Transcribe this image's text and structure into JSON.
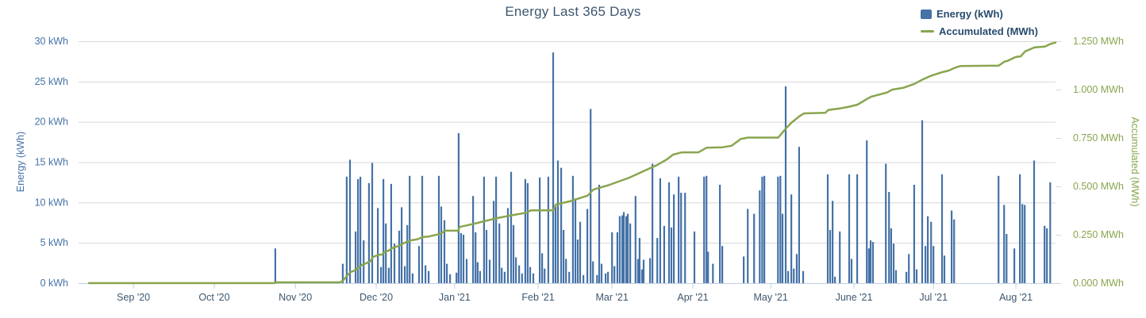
{
  "chart_data": {
    "type": "combo",
    "title": "Energy Last 365 Days",
    "title_color": "#3E576F",
    "background_color": "#ffffff",
    "grid_color": "#D8D8D8",
    "axis_line_color": "#C0D0E0",
    "legend": {
      "items": [
        {
          "label": "Energy (kWh)",
          "symbol": "bar",
          "color": "#4572A7"
        },
        {
          "label": "Accumulated (MWh)",
          "symbol": "line",
          "color": "#89A54E"
        }
      ],
      "text_color": "#274B6D",
      "position": "top-right"
    },
    "x_axis": {
      "unit": "days_from_start",
      "range_days": 365,
      "label_color": "#3E576F",
      "ticks": [
        {
          "label": "Sep '20",
          "d": 20.5
        },
        {
          "label": "Oct '20",
          "d": 50.7
        },
        {
          "label": "Nov '20",
          "d": 81.0
        },
        {
          "label": "Dec '20",
          "d": 111.2
        },
        {
          "label": "Jan '21",
          "d": 140.5
        },
        {
          "label": "Feb '21",
          "d": 171.7
        },
        {
          "label": "Mar '21",
          "d": 199.3
        },
        {
          "label": "Apr '21",
          "d": 229.5
        },
        {
          "label": "May '21",
          "d": 258.6
        },
        {
          "label": "June '21",
          "d": 289.7
        },
        {
          "label": "Jul '21",
          "d": 319.4
        },
        {
          "label": "Aug '21",
          "d": 350.2
        }
      ]
    },
    "y_axis_left": {
      "title": "Energy (kWh)",
      "color": "#4572A7",
      "min": 0,
      "max": 30,
      "tick_step": 5,
      "ticks": [
        {
          "v": 0,
          "label": "0 kWh"
        },
        {
          "v": 5,
          "label": "5 kWh"
        },
        {
          "v": 10,
          "label": "10 kWh"
        },
        {
          "v": 15,
          "label": "15 kWh"
        },
        {
          "v": 20,
          "label": "20 kWh"
        },
        {
          "v": 25,
          "label": "25 kWh"
        },
        {
          "v": 30,
          "label": "30 kWh"
        }
      ]
    },
    "y_axis_right": {
      "title": "Accumulated (MWh)",
      "color": "#89A54E",
      "min": 0,
      "max": 1.25,
      "tick_step": 0.25,
      "ticks": [
        {
          "v": 0,
          "label": "0.000 MWh"
        },
        {
          "v": 0.25,
          "label": "0.250 MWh"
        },
        {
          "v": 0.5,
          "label": "0.500 MWh"
        },
        {
          "v": 0.75,
          "label": "0.750 MWh"
        },
        {
          "v": 1.0,
          "label": "1.000 MWh"
        },
        {
          "v": 1.25,
          "label": "1.250 MWh"
        }
      ]
    },
    "series": [
      {
        "name": "Energy (kWh)",
        "type": "bar",
        "axis": "left",
        "unit": "kWh",
        "color": "#4572A7",
        "points": [
          [
            73.5,
            4.3
          ],
          [
            98.7,
            2.4
          ],
          [
            100.2,
            13.2
          ],
          [
            101.4,
            15.3
          ],
          [
            103.5,
            6.4
          ],
          [
            104.4,
            12.9
          ],
          [
            105.3,
            13.2
          ],
          [
            106.5,
            5.3
          ],
          [
            108.5,
            12.4
          ],
          [
            109.7,
            14.9
          ],
          [
            111.8,
            9.3
          ],
          [
            113,
            2
          ],
          [
            113.9,
            12.9
          ],
          [
            114.8,
            7.4
          ],
          [
            115.9,
            1.9
          ],
          [
            116.8,
            12.3
          ],
          [
            118,
            4.9
          ],
          [
            119.8,
            6.5
          ],
          [
            120.7,
            9.4
          ],
          [
            121.9,
            2.1
          ],
          [
            122.8,
            7.2
          ],
          [
            123.7,
            13.3
          ],
          [
            124.8,
            1.2
          ],
          [
            127.2,
            4.6
          ],
          [
            128.4,
            13.3
          ],
          [
            129.6,
            2.2
          ],
          [
            130.8,
            1.5
          ],
          [
            134.6,
            13.3
          ],
          [
            135.5,
            9.5
          ],
          [
            136.7,
            7.8
          ],
          [
            137.6,
            2.4
          ],
          [
            138.8,
            1.1
          ],
          [
            141.2,
            1.3
          ],
          [
            142,
            18.6
          ],
          [
            142.9,
            6.2
          ],
          [
            143.8,
            6
          ],
          [
            145,
            3
          ],
          [
            147.4,
            10.8
          ],
          [
            148.3,
            6.3
          ],
          [
            149.1,
            2.6
          ],
          [
            150,
            1.5
          ],
          [
            151.5,
            13.2
          ],
          [
            152.4,
            6.6
          ],
          [
            153.6,
            2.9
          ],
          [
            155.1,
            10.2
          ],
          [
            156,
            13.2
          ],
          [
            157.2,
            7.4
          ],
          [
            158.1,
            1.9
          ],
          [
            159.2,
            1.4
          ],
          [
            160.4,
            9.3
          ],
          [
            161.6,
            13.8
          ],
          [
            162.5,
            7.2
          ],
          [
            163.4,
            3.2
          ],
          [
            164.6,
            2.2
          ],
          [
            165.7,
            1.2
          ],
          [
            166.9,
            12.9
          ],
          [
            167.8,
            12.4
          ],
          [
            168.7,
            2
          ],
          [
            169.9,
            1.2
          ],
          [
            172.3,
            13.1
          ],
          [
            173.2,
            3.7
          ],
          [
            174.1,
            1.8
          ],
          [
            175.5,
            13.2
          ],
          [
            177.3,
            28.6
          ],
          [
            178.2,
            9.5
          ],
          [
            179.1,
            15.2
          ],
          [
            180.3,
            14.3
          ],
          [
            181.2,
            6.6
          ],
          [
            182.1,
            3
          ],
          [
            183.3,
            1.4
          ],
          [
            184.7,
            13.3
          ],
          [
            185.6,
            10.5
          ],
          [
            186.5,
            5.4
          ],
          [
            187.4,
            7.6
          ],
          [
            188.6,
            1
          ],
          [
            190.1,
            9.2
          ],
          [
            191.3,
            21.6
          ],
          [
            192.2,
            2.7
          ],
          [
            193.7,
            1
          ],
          [
            194.5,
            12.2
          ],
          [
            195.4,
            2.4
          ],
          [
            196.9,
            1.2
          ],
          [
            197.8,
            1.4
          ],
          [
            199.3,
            6.3
          ],
          [
            200.2,
            2.1
          ],
          [
            201.3,
            6.3
          ],
          [
            202.2,
            8.3
          ],
          [
            203.1,
            8.4
          ],
          [
            203.7,
            8.8
          ],
          [
            204.6,
            8.3
          ],
          [
            205.2,
            8.6
          ],
          [
            206.1,
            7.4
          ],
          [
            208.1,
            10.8
          ],
          [
            209,
            3
          ],
          [
            209.6,
            5.6
          ],
          [
            210.5,
            1.7
          ],
          [
            211.1,
            2.9
          ],
          [
            213.5,
            3.1
          ],
          [
            214.4,
            14.8
          ],
          [
            216.2,
            5.6
          ],
          [
            217.3,
            13
          ],
          [
            218.8,
            7.1
          ],
          [
            220.6,
            12.5
          ],
          [
            221.5,
            6.9
          ],
          [
            222.4,
            11
          ],
          [
            224.2,
            13.2
          ],
          [
            225.1,
            11.2
          ],
          [
            226.6,
            11.2
          ],
          [
            230.1,
            6.4
          ],
          [
            233.7,
            13.2
          ],
          [
            234.6,
            13.3
          ],
          [
            235.2,
            3.9
          ],
          [
            237,
            2.4
          ],
          [
            239.6,
            12.2
          ],
          [
            240.5,
            4.6
          ],
          [
            248.5,
            3.3
          ],
          [
            250,
            9.2
          ],
          [
            252.4,
            8.6
          ],
          [
            254.5,
            11.5
          ],
          [
            255.4,
            13.2
          ],
          [
            256.2,
            13.3
          ],
          [
            261.3,
            13.2
          ],
          [
            262.2,
            13.3
          ],
          [
            263,
            8.6
          ],
          [
            264.2,
            24.4
          ],
          [
            265.1,
            1.5
          ],
          [
            266.3,
            11
          ],
          [
            267.2,
            1.8
          ],
          [
            268.3,
            3.6
          ],
          [
            269.2,
            16.9
          ],
          [
            270.7,
            1.5
          ],
          [
            279.9,
            13.5
          ],
          [
            280.8,
            6.6
          ],
          [
            281.7,
            10.2
          ],
          [
            282.6,
            0.8
          ],
          [
            284.4,
            6.4
          ],
          [
            287.9,
            13.5
          ],
          [
            288.8,
            3
          ],
          [
            290.9,
            13.5
          ],
          [
            294.5,
            17.7
          ],
          [
            295.3,
            4.3
          ],
          [
            295.9,
            5.3
          ],
          [
            296.8,
            5.1
          ],
          [
            301.6,
            14.8
          ],
          [
            302.8,
            11.3
          ],
          [
            303.6,
            6.8
          ],
          [
            304.5,
            4.9
          ],
          [
            305.4,
            1.6
          ],
          [
            309.3,
            1.4
          ],
          [
            310.2,
            3.6
          ],
          [
            312.2,
            12.2
          ],
          [
            313.1,
            1.7
          ],
          [
            315.2,
            20.2
          ],
          [
            316.4,
            4.6
          ],
          [
            317.3,
            8.3
          ],
          [
            318.5,
            7.6
          ],
          [
            319.4,
            4.6
          ],
          [
            322.6,
            13.5
          ],
          [
            323.5,
            3.4
          ],
          [
            326.2,
            9
          ],
          [
            327.1,
            7.9
          ],
          [
            343.7,
            13.3
          ],
          [
            345.8,
            9.7
          ],
          [
            346.7,
            6.1
          ],
          [
            349.6,
            4.3
          ],
          [
            351.7,
            13.5
          ],
          [
            352.6,
            9.8
          ],
          [
            353.5,
            9.7
          ],
          [
            357,
            15.2
          ],
          [
            360.9,
            7.1
          ],
          [
            361.8,
            6.8
          ],
          [
            363,
            12.5
          ]
        ]
      },
      {
        "name": "Accumulated (MWh)",
        "type": "line",
        "axis": "right",
        "unit": "MWh",
        "color": "#89A54E",
        "points": [
          [
            3.9,
            0
          ],
          [
            72.9,
            0
          ],
          [
            74,
            0.004
          ],
          [
            97.6,
            0.004
          ],
          [
            98.7,
            0.012
          ],
          [
            100.3,
            0.038
          ],
          [
            101.5,
            0.056
          ],
          [
            103.6,
            0.068
          ],
          [
            104.8,
            0.082
          ],
          [
            106,
            0.095
          ],
          [
            107.2,
            0.101
          ],
          [
            108.9,
            0.112
          ],
          [
            110.1,
            0.136
          ],
          [
            112.2,
            0.146
          ],
          [
            113.4,
            0.148
          ],
          [
            114.3,
            0.161
          ],
          [
            116,
            0.169
          ],
          [
            117.2,
            0.181
          ],
          [
            120.5,
            0.197
          ],
          [
            121.4,
            0.206
          ],
          [
            124,
            0.221
          ],
          [
            126.4,
            0.226
          ],
          [
            128.8,
            0.239
          ],
          [
            130.9,
            0.241
          ],
          [
            135,
            0.254
          ],
          [
            136.2,
            0.264
          ],
          [
            137.1,
            0.271
          ],
          [
            141.8,
            0.271
          ],
          [
            142.4,
            0.29
          ],
          [
            144.2,
            0.296
          ],
          [
            147.8,
            0.307
          ],
          [
            151.9,
            0.321
          ],
          [
            156.4,
            0.336
          ],
          [
            162,
            0.351
          ],
          [
            167.3,
            0.364
          ],
          [
            169,
            0.376
          ],
          [
            177.3,
            0.376
          ],
          [
            178.3,
            0.405
          ],
          [
            184,
            0.425
          ],
          [
            190.2,
            0.452
          ],
          [
            192.3,
            0.483
          ],
          [
            198,
            0.506
          ],
          [
            205.8,
            0.545
          ],
          [
            211.3,
            0.58
          ],
          [
            216.4,
            0.612
          ],
          [
            219.9,
            0.64
          ],
          [
            222.1,
            0.664
          ],
          [
            225.4,
            0.676
          ],
          [
            231.6,
            0.676
          ],
          [
            234.7,
            0.7
          ],
          [
            240.6,
            0.702
          ],
          [
            244,
            0.71
          ],
          [
            247.4,
            0.745
          ],
          [
            250.1,
            0.752
          ],
          [
            261.4,
            0.752
          ],
          [
            264.3,
            0.8
          ],
          [
            266.4,
            0.83
          ],
          [
            269.3,
            0.862
          ],
          [
            271,
            0.877
          ],
          [
            279,
            0.88
          ],
          [
            280.1,
            0.895
          ],
          [
            284.5,
            0.903
          ],
          [
            288,
            0.912
          ],
          [
            291,
            0.922
          ],
          [
            294.6,
            0.952
          ],
          [
            296.1,
            0.963
          ],
          [
            302,
            0.985
          ],
          [
            304,
            1
          ],
          [
            308.3,
            1.01
          ],
          [
            312.3,
            1.03
          ],
          [
            315.3,
            1.052
          ],
          [
            318.6,
            1.072
          ],
          [
            322.7,
            1.09
          ],
          [
            325,
            1.098
          ],
          [
            327.2,
            1.112
          ],
          [
            329.5,
            1.122
          ],
          [
            343.8,
            1.124
          ],
          [
            346,
            1.145
          ],
          [
            347,
            1.148
          ],
          [
            350,
            1.168
          ],
          [
            352,
            1.172
          ],
          [
            353.6,
            1.197
          ],
          [
            357.1,
            1.218
          ],
          [
            361,
            1.222
          ],
          [
            363.1,
            1.236
          ],
          [
            365,
            1.243
          ]
        ]
      }
    ]
  }
}
